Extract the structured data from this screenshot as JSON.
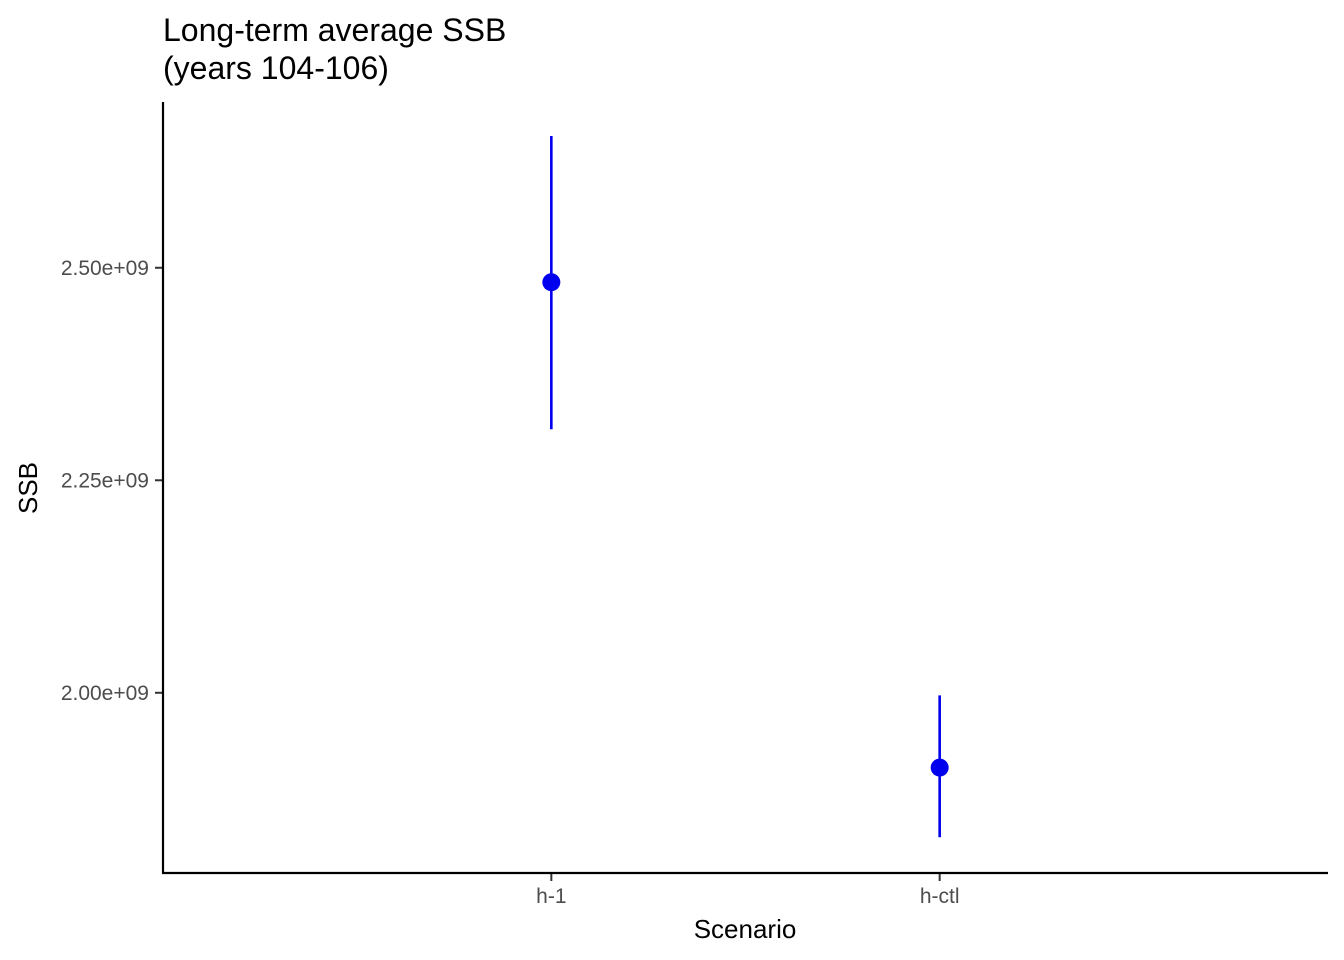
{
  "chart_data": {
    "type": "scatter",
    "title": "Long-term average  SSB",
    "subtitle": "(years 104-106)",
    "xlabel": "Scenario",
    "ylabel": "SSB",
    "categories": [
      "h-1",
      "h-ctl"
    ],
    "series": [
      {
        "values": [
          2483000000,
          1912000000
        ],
        "lower": [
          2310000000,
          1830000000
        ],
        "upper": [
          2655000000,
          1997000000
        ]
      }
    ],
    "yticks": [
      2000000000,
      2250000000,
      2500000000
    ],
    "ytick_labels": [
      "2.00e+09",
      "2.25e+09",
      "2.50e+09"
    ],
    "ylim": [
      1788000000,
      2695000000
    ],
    "grid": false,
    "legend": "none",
    "colors": {
      "series": "#0000ee",
      "axis": "#000000",
      "tick_text": "#4d4d4d"
    }
  }
}
